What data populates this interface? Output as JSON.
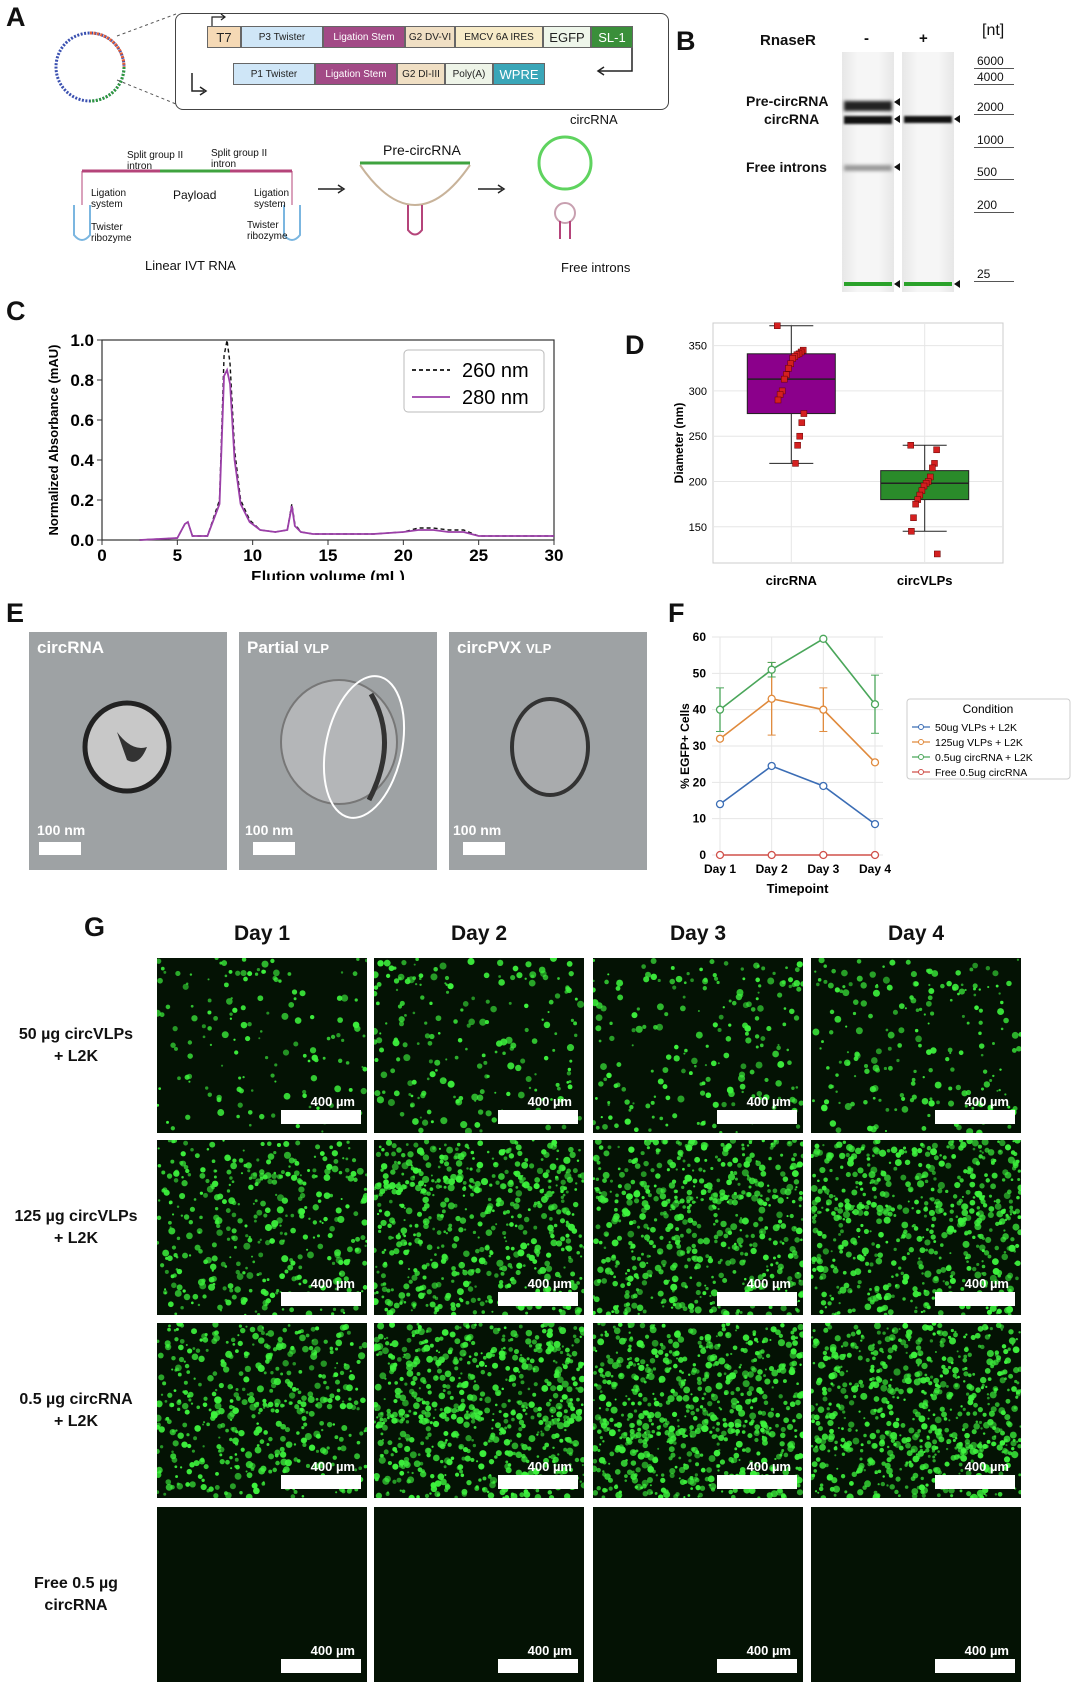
{
  "panelA": {
    "label": "A",
    "top_row": [
      "T7",
      "P3 Twister",
      "Ligation Stem",
      "G2 DV-VI",
      "EMCV 6A IRES",
      "EGFP",
      "SL-1"
    ],
    "bottom_row": [
      "P1 Twister",
      "Ligation Stem",
      "G2 DI-III",
      "Poly(A)",
      "WPRE"
    ],
    "split_intron_left": "Split group II intron",
    "split_intron_right": "Split group II intron",
    "payload": "Payload",
    "ligation_left": "Ligation system",
    "ligation_right": "Ligation system",
    "twister_left": "Twister ribozyme",
    "twister_right": "Twister ribozyme",
    "linear_ivt": "Linear IVT RNA",
    "pre_circrna": "Pre-circRNA",
    "circrna": "circRNA",
    "free_introns": "Free introns"
  },
  "panelB": {
    "label": "B",
    "rnaser": "RnaseR",
    "lane_minus": "-",
    "lane_plus": "+",
    "unit": "[nt]",
    "band_pre": "Pre-circRNA",
    "band_circ": "circRNA",
    "band_free": "Free introns",
    "ladder": [
      "6000",
      "4000",
      "2000",
      "1000",
      "500",
      "200",
      "25"
    ]
  },
  "panelC": {
    "label": "C",
    "chart_data": {
      "type": "line",
      "xlabel": "Elution volume (mL)",
      "ylabel": "Normalized Absorbance (mAU)",
      "xlim": [
        0,
        30
      ],
      "ylim": [
        0,
        1.0
      ],
      "xticks": [
        "0",
        "5",
        "10",
        "15",
        "20",
        "25",
        "30"
      ],
      "yticks": [
        "0.0",
        "0.2",
        "0.4",
        "0.6",
        "0.8",
        "1.0"
      ],
      "legend": "top-right",
      "series": [
        {
          "name": "260 nm",
          "style": "dashed",
          "color": "#111111",
          "x": [
            2.5,
            5.0,
            5.5,
            5.7,
            6.0,
            7.0,
            7.8,
            8.1,
            8.3,
            8.5,
            8.8,
            9.2,
            9.8,
            10.5,
            11.5,
            12.3,
            12.6,
            12.8,
            13.2,
            14,
            16,
            18,
            20,
            21,
            22,
            23,
            24,
            25,
            28,
            30
          ],
          "y": [
            0.0,
            0.01,
            0.08,
            0.09,
            0.02,
            0.02,
            0.2,
            0.92,
            1.0,
            0.88,
            0.45,
            0.2,
            0.1,
            0.05,
            0.04,
            0.05,
            0.18,
            0.08,
            0.04,
            0.03,
            0.03,
            0.03,
            0.04,
            0.06,
            0.06,
            0.05,
            0.05,
            0.02,
            0.02,
            0.02
          ]
        },
        {
          "name": "280 nm",
          "style": "solid",
          "color": "#9b3fa8",
          "x": [
            2.5,
            5.0,
            5.5,
            5.7,
            6.0,
            7.0,
            7.8,
            8.1,
            8.3,
            8.5,
            8.8,
            9.2,
            9.8,
            10.5,
            11.5,
            12.3,
            12.6,
            12.8,
            13.2,
            14,
            16,
            18,
            20,
            21,
            22,
            23,
            24,
            25,
            28,
            30
          ],
          "y": [
            0.0,
            0.01,
            0.08,
            0.09,
            0.02,
            0.02,
            0.18,
            0.82,
            0.85,
            0.78,
            0.4,
            0.18,
            0.09,
            0.05,
            0.04,
            0.05,
            0.17,
            0.07,
            0.04,
            0.03,
            0.03,
            0.03,
            0.04,
            0.05,
            0.05,
            0.04,
            0.04,
            0.02,
            0.02,
            0.02
          ]
        }
      ]
    }
  },
  "panelD": {
    "label": "D",
    "chart_data": {
      "type": "box",
      "ylabel": "Diameter (nm)",
      "ylim": [
        110,
        375
      ],
      "yticks": [
        "150",
        "200",
        "250",
        "300",
        "350"
      ],
      "categories": [
        "circRNA",
        "circVLPs"
      ],
      "boxes": [
        {
          "name": "circRNA",
          "color": "#8b008b",
          "min": 220,
          "q1": 275,
          "median": 313,
          "q3": 341,
          "max": 372,
          "points": [
            372,
            345,
            343,
            341,
            340,
            338,
            336,
            330,
            325,
            318,
            313,
            300,
            296,
            290,
            275,
            265,
            250,
            240,
            220
          ]
        },
        {
          "name": "circVLPs",
          "color": "#2a8b2a",
          "min": 145,
          "q1": 180,
          "median": 198,
          "q3": 212,
          "max": 240,
          "points": [
            240,
            235,
            220,
            215,
            205,
            200,
            198,
            195,
            190,
            185,
            180,
            175,
            160,
            145,
            120
          ]
        }
      ]
    }
  },
  "panelE": {
    "label": "E",
    "panels": [
      {
        "title": "circRNA",
        "suffix": "",
        "scale": "100 nm"
      },
      {
        "title": "Partial",
        "suffix": "VLP",
        "scale": "100 nm"
      },
      {
        "title": "circPVX",
        "suffix": "VLP",
        "scale": "100 nm"
      }
    ]
  },
  "panelF": {
    "label": "F",
    "chart_data": {
      "type": "line",
      "xlabel": "Timepoint",
      "ylabel": "% EGFP+ Cells",
      "categories": [
        "Day 1",
        "Day 2",
        "Day 3",
        "Day 4"
      ],
      "ylim": [
        0,
        60
      ],
      "yticks": [
        "0",
        "10",
        "20",
        "30",
        "40",
        "50",
        "60"
      ],
      "legend_title": "Condition",
      "series": [
        {
          "name": "50ug VLPs + L2K",
          "color": "#3b6db5",
          "values": [
            14,
            24.5,
            19,
            8.5
          ],
          "err": [
            0,
            0,
            0,
            0
          ]
        },
        {
          "name": "125ug VLPs + L2K",
          "color": "#e08a3c",
          "values": [
            32,
            43,
            40,
            25.5
          ],
          "err": [
            0,
            10,
            6,
            0
          ]
        },
        {
          "name": "0.5ug circRNA + L2K",
          "color": "#4aa65a",
          "values": [
            40,
            51,
            59.5,
            41.5
          ],
          "err": [
            6,
            2,
            0,
            8
          ]
        },
        {
          "name": "Free 0.5ug circRNA",
          "color": "#d0504a",
          "values": [
            0,
            0,
            0,
            0
          ],
          "err": [
            0,
            0,
            0,
            0
          ]
        }
      ]
    }
  },
  "panelG": {
    "label": "G",
    "days": [
      "Day 1",
      "Day 2",
      "Day 3",
      "Day 4"
    ],
    "rows": [
      {
        "label1": "50 µg circVLPs",
        "label2": "+ L2K",
        "density": 0.25
      },
      {
        "label1": "125 µg circVLPs",
        "label2": "+ L2K",
        "density": 0.8
      },
      {
        "label1": "0.5 µg circRNA",
        "label2": "+ L2K",
        "density": 0.95
      },
      {
        "label1": "Free 0.5 µg",
        "label2": "circRNA",
        "density": 0.0
      }
    ],
    "scale": "400 µm"
  },
  "colors": {
    "green": "#33e633",
    "purple": "#8b008b"
  }
}
